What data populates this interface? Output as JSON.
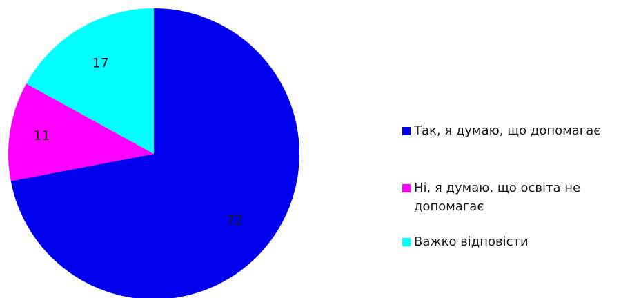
{
  "chart_data": {
    "type": "pie",
    "title": "",
    "categories": [
      "Так, я думаю, що допомагає",
      "Ні, я думаю, що освіта не допомагає",
      "Важко відповісти"
    ],
    "values": [
      72,
      11,
      17
    ],
    "colors": [
      "#0000ee",
      "#ff00ff",
      "#00ffff"
    ],
    "data_labels": [
      "72",
      "11",
      "17"
    ],
    "start_angle_deg": 0,
    "direction": "clockwise",
    "legend_position": "right"
  }
}
